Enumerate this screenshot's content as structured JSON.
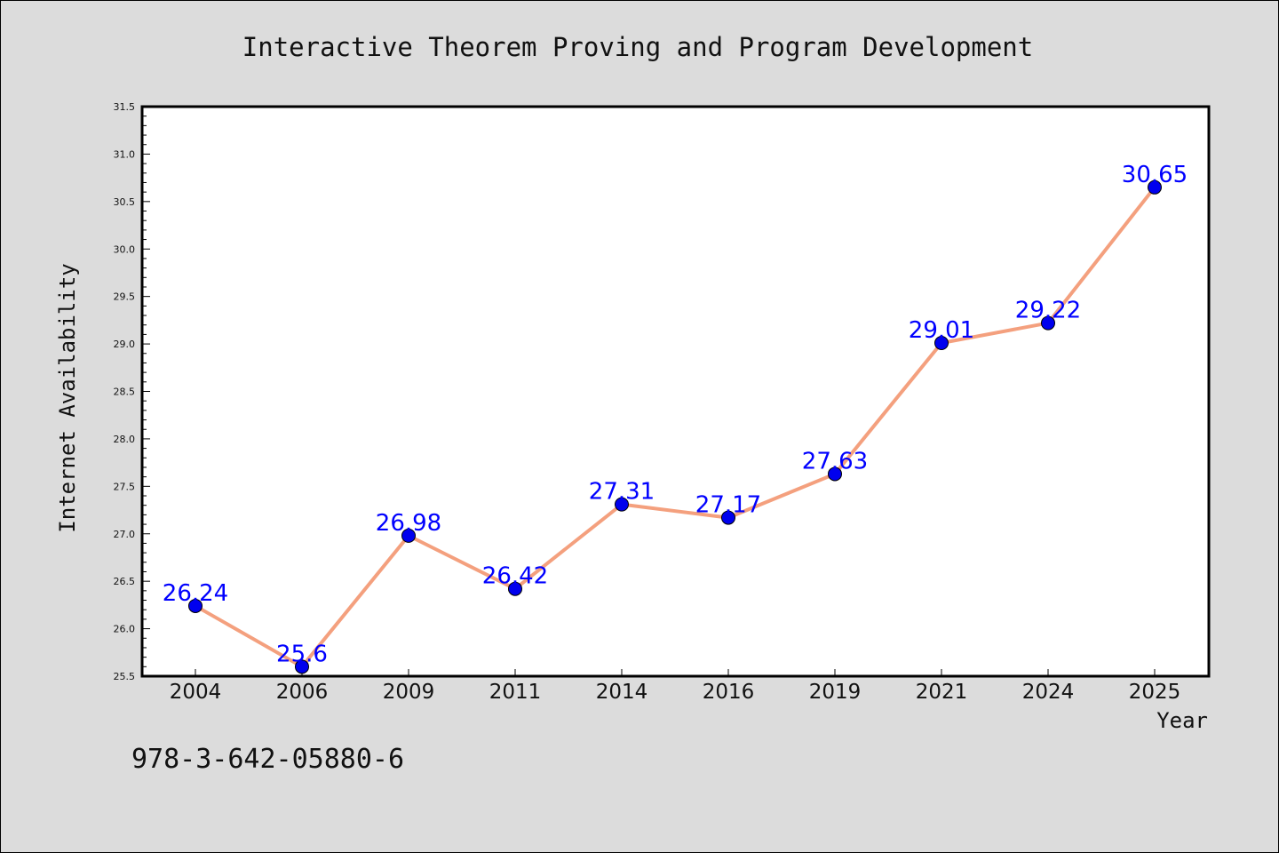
{
  "chart_data": {
    "type": "line",
    "title": "Interactive Theorem Proving and Program Development",
    "xlabel": "Year",
    "ylabel": "Internet Availability",
    "categories": [
      "2004",
      "2006",
      "2009",
      "2011",
      "2014",
      "2016",
      "2019",
      "2021",
      "2024",
      "2025"
    ],
    "series": [
      {
        "values": [
          26.24,
          25.6,
          26.98,
          26.42,
          27.31,
          27.17,
          27.63,
          29.01,
          29.22,
          30.65
        ],
        "labels": [
          "26.24",
          "25.6",
          "26.98",
          "26.42",
          "27.31",
          "27.17",
          "27.63",
          "29.01",
          "29.22",
          "30.65"
        ]
      }
    ],
    "ylim": [
      25.5,
      31.5
    ],
    "yticks": [
      "25.5",
      "26.0",
      "26.5",
      "27.0",
      "27.5",
      "28.0",
      "28.5",
      "29.0",
      "29.5",
      "30.0",
      "30.5",
      "31.0",
      "31.5"
    ],
    "grid": false,
    "legend": "none",
    "colors": {
      "line": "#f4a07e",
      "marker": "#0000ee",
      "data_label": "#0000ff",
      "plot_bg": "#ffffff",
      "figure_bg": "#dcdcdc"
    }
  },
  "footer": {
    "isbn": "978-3-642-05880-6"
  }
}
